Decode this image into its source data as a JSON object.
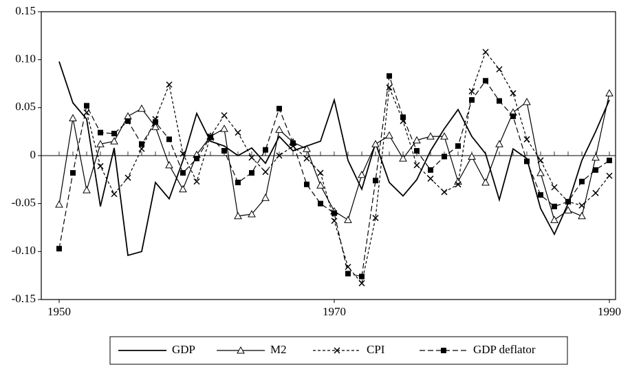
{
  "chart_data": {
    "type": "line",
    "x": [
      1950,
      1951,
      1952,
      1953,
      1954,
      1955,
      1956,
      1957,
      1958,
      1959,
      1960,
      1961,
      1962,
      1963,
      1964,
      1965,
      1966,
      1967,
      1968,
      1969,
      1970,
      1971,
      1972,
      1973,
      1974,
      1975,
      1976,
      1977,
      1978,
      1979,
      1980,
      1981,
      1982,
      1983,
      1984,
      1985,
      1986,
      1987,
      1988,
      1989,
      1990
    ],
    "xlim": [
      1948.7,
      1990.45
    ],
    "xticks": [
      1950,
      1970,
      1990
    ],
    "ylim": [
      -0.15,
      0.15
    ],
    "yticks": [
      0.15,
      {
        "value": 0.1,
        "label": "0.10"
      },
      0.05,
      0,
      -0.05,
      {
        "value": -0.1,
        "label": "-0.10"
      },
      -0.15
    ],
    "series": [
      {
        "name": "GDP",
        "color": "#000000",
        "dash": "none",
        "marker": "none",
        "values": [
          0.098,
          0.055,
          0.038,
          -0.053,
          0.008,
          -0.104,
          -0.1,
          -0.028,
          -0.045,
          -0.005,
          0.044,
          0.015,
          0.01,
          0.0,
          0.008,
          -0.008,
          0.02,
          0.005,
          0.01,
          0.015,
          0.058,
          -0.005,
          -0.035,
          0.013,
          -0.028,
          -0.042,
          -0.025,
          0.005,
          0.028,
          0.048,
          0.02,
          0.002,
          -0.046,
          0.007,
          -0.003,
          -0.055,
          -0.082,
          -0.05,
          -0.005,
          0.025,
          0.058
        ]
      },
      {
        "name": "M2",
        "color": "#000000",
        "dash": "none",
        "marker": "triangle",
        "values": [
          -0.051,
          0.039,
          -0.036,
          0.012,
          0.015,
          0.041,
          0.049,
          0.03,
          -0.01,
          -0.035,
          0.001,
          0.02,
          0.028,
          -0.063,
          -0.061,
          -0.044,
          0.027,
          0.014,
          0.007,
          -0.031,
          -0.058,
          -0.067,
          -0.02,
          0.012,
          0.021,
          -0.003,
          0.016,
          0.02,
          0.02,
          -0.027,
          -0.001,
          -0.028,
          0.012,
          0.045,
          0.056,
          -0.018,
          -0.067,
          -0.057,
          -0.063,
          -0.002,
          0.065
        ]
      },
      {
        "name": "CPI",
        "color": "#000000",
        "dash": "4 3",
        "marker": "x",
        "values": [
          null,
          null,
          0.045,
          -0.011,
          -0.04,
          -0.023,
          0.007,
          0.038,
          0.074,
          0.002,
          -0.027,
          0.02,
          0.042,
          0.024,
          -0.002,
          -0.017,
          0.0,
          0.01,
          -0.003,
          -0.018,
          -0.068,
          -0.116,
          -0.133,
          -0.065,
          0.071,
          0.036,
          -0.01,
          -0.024,
          -0.038,
          -0.03,
          0.067,
          0.108,
          0.09,
          0.065,
          0.017,
          -0.005,
          -0.033,
          -0.048,
          -0.052,
          -0.039,
          -0.021
        ]
      },
      {
        "name": "GDP deflator",
        "color": "#000000",
        "dash": "8 4",
        "marker": "square",
        "values": [
          -0.097,
          -0.018,
          0.052,
          0.024,
          0.023,
          0.036,
          0.012,
          0.035,
          0.017,
          -0.018,
          -0.003,
          0.019,
          0.005,
          -0.028,
          -0.018,
          0.006,
          0.049,
          0.013,
          -0.03,
          -0.05,
          -0.06,
          -0.123,
          -0.126,
          -0.026,
          0.083,
          0.04,
          0.005,
          -0.015,
          -0.001,
          0.01,
          0.058,
          0.078,
          0.057,
          0.041,
          -0.006,
          -0.041,
          -0.053,
          -0.048,
          -0.027,
          -0.015,
          -0.005
        ]
      }
    ]
  }
}
